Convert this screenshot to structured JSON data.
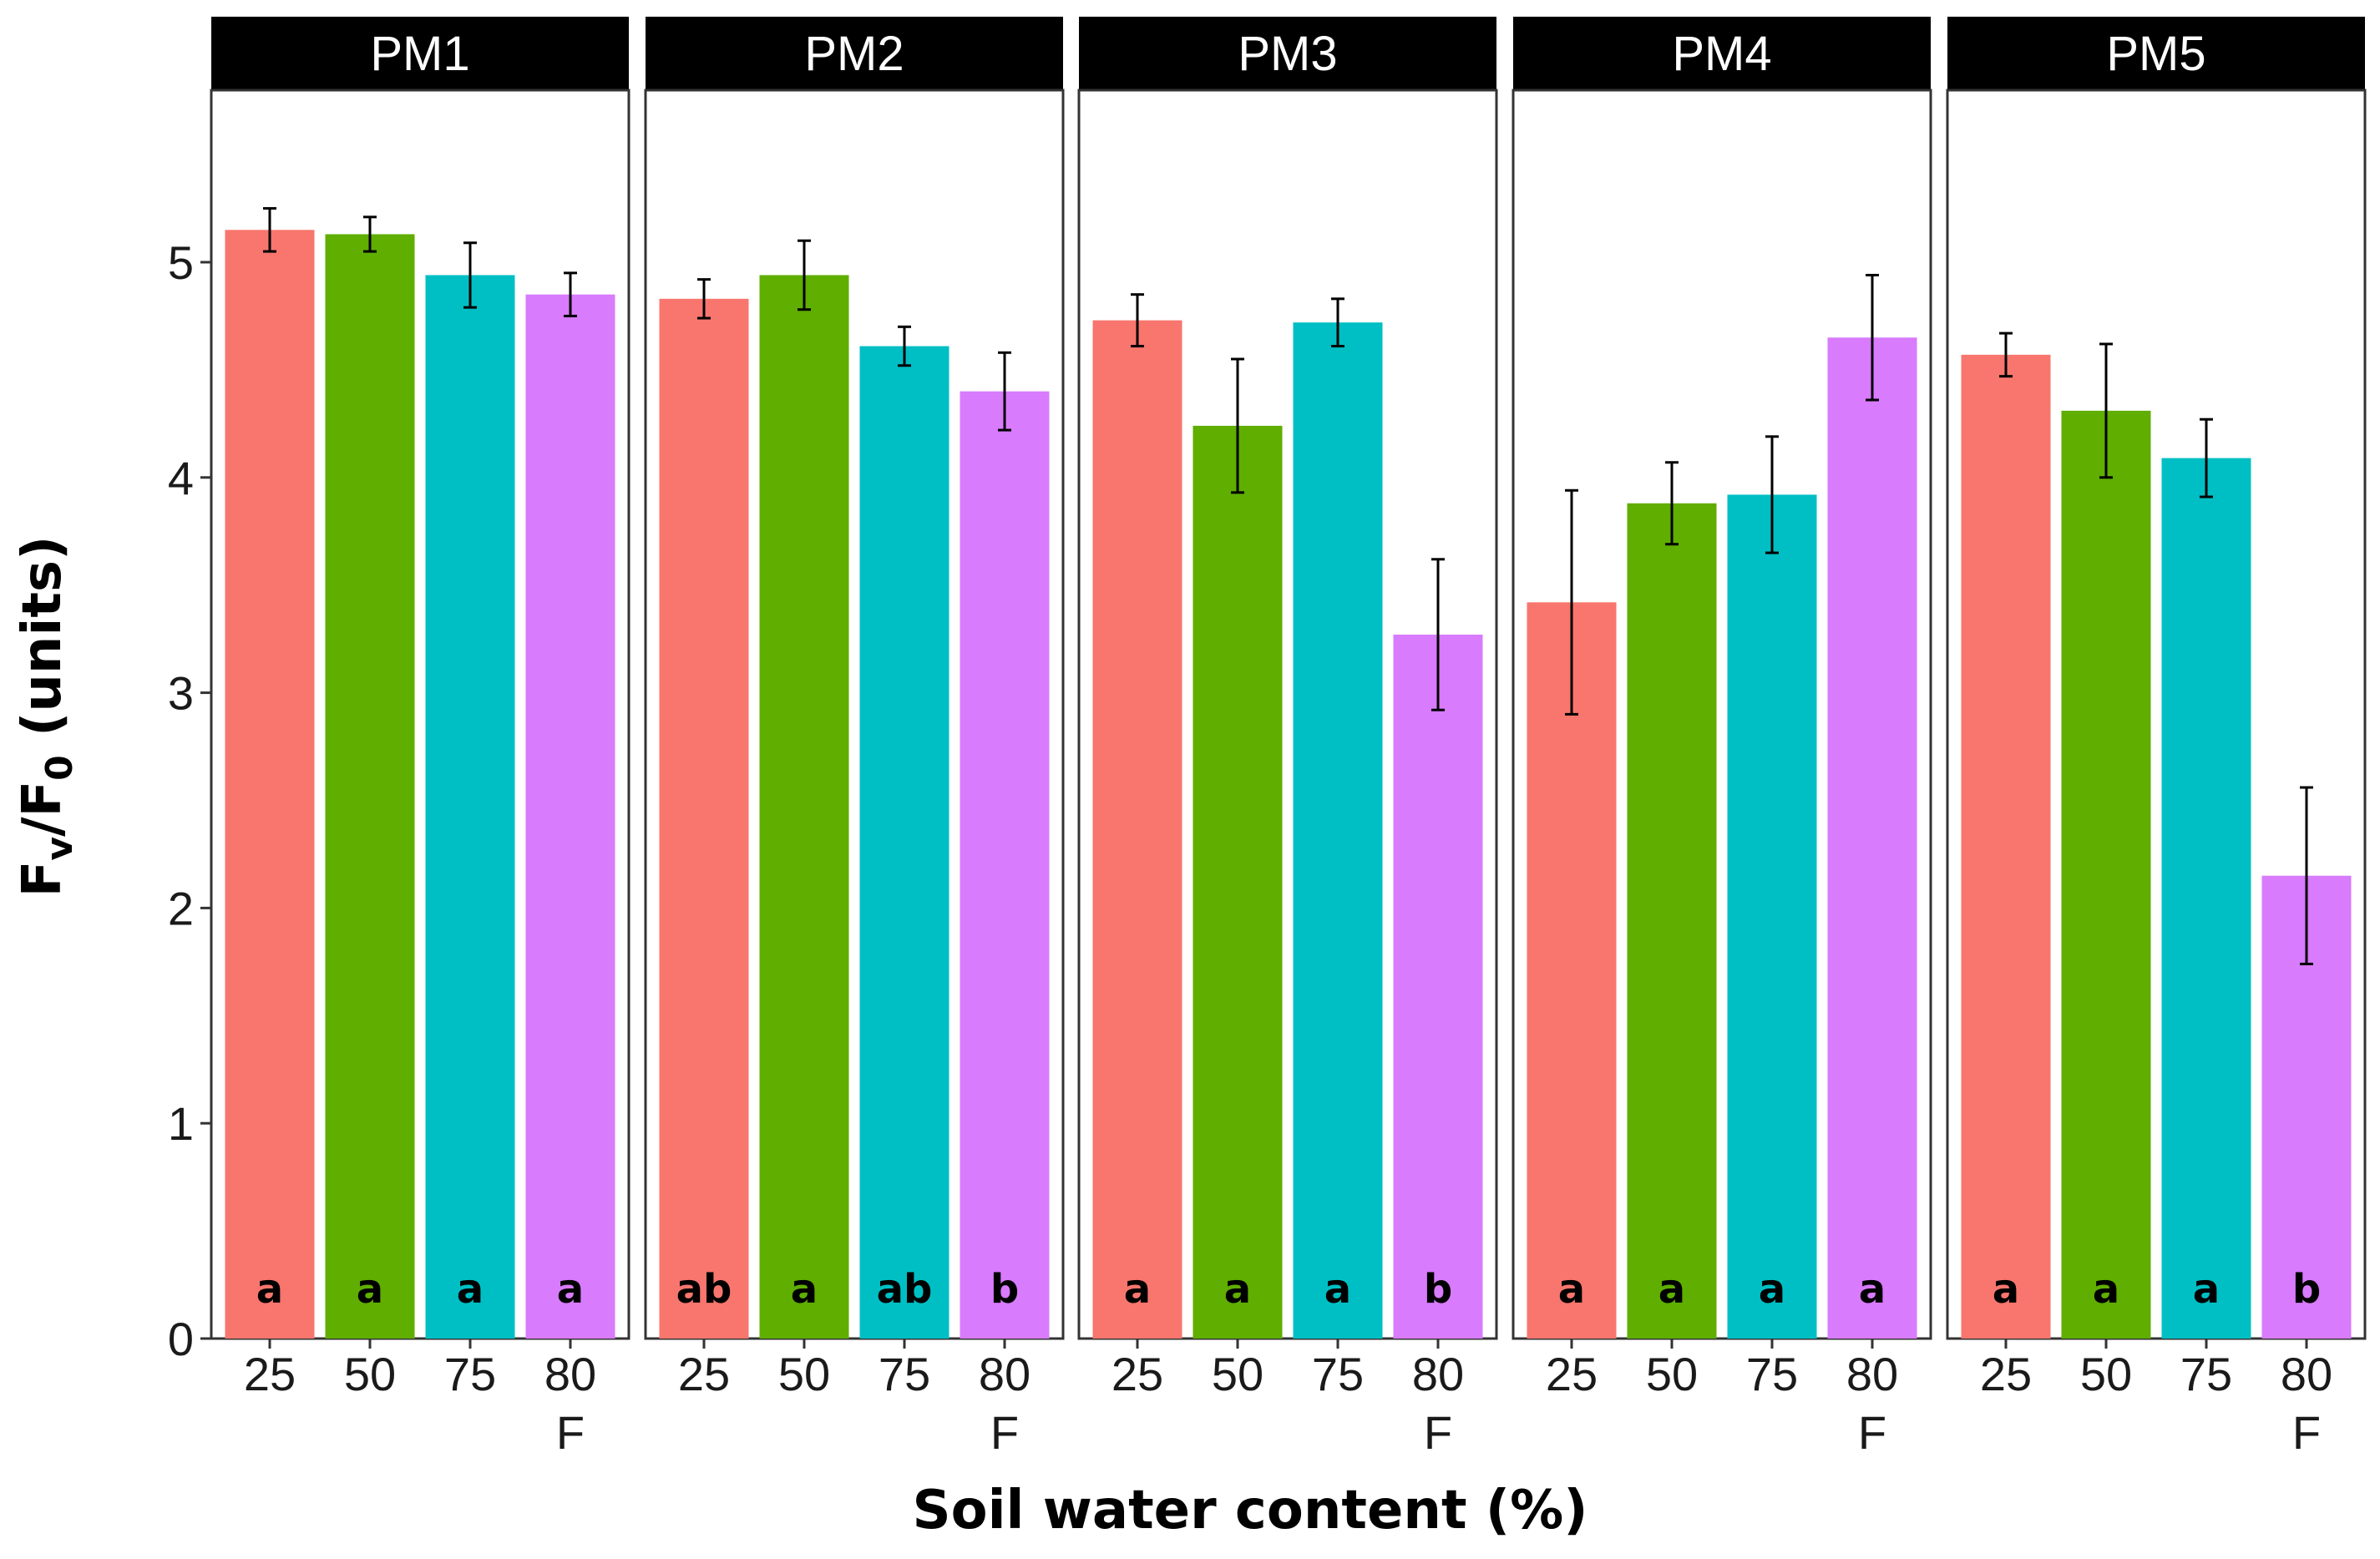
{
  "chart_data": {
    "type": "bar",
    "xlabel": "Soil water content (%)",
    "ylabel": {
      "main": "F",
      "sub_v": "v",
      "sep": "/F",
      "sub_0": "0",
      "rest": " (units)"
    },
    "ylim": [
      0,
      5.8
    ],
    "yticks": [
      0,
      1,
      2,
      3,
      4,
      5
    ],
    "grid": false,
    "legend": "none",
    "categories": [
      "25",
      "50",
      "75",
      "80"
    ],
    "category_sublabels": [
      "",
      "",
      "",
      "F"
    ],
    "colors": [
      "#F8766D",
      "#5FAE00",
      "#00BFC4",
      "#D87BFD"
    ],
    "panels": [
      {
        "name": "PM1",
        "values": [
          5.15,
          5.13,
          4.94,
          4.85
        ],
        "errors": [
          0.1,
          0.08,
          0.15,
          0.1
        ],
        "letters": [
          "a",
          "a",
          "a",
          "a"
        ]
      },
      {
        "name": "PM2",
        "values": [
          4.83,
          4.94,
          4.61,
          4.4
        ],
        "errors": [
          0.09,
          0.16,
          0.09,
          0.18
        ],
        "letters": [
          "ab",
          "a",
          "ab",
          "b"
        ]
      },
      {
        "name": "PM3",
        "values": [
          4.73,
          4.24,
          4.72,
          3.27
        ],
        "errors": [
          0.12,
          0.31,
          0.11,
          0.35
        ],
        "letters": [
          "a",
          "a",
          "a",
          "b"
        ]
      },
      {
        "name": "PM4",
        "values": [
          3.42,
          3.88,
          3.92,
          4.65
        ],
        "errors": [
          0.52,
          0.19,
          0.27,
          0.29
        ],
        "letters": [
          "a",
          "a",
          "a",
          "a"
        ]
      },
      {
        "name": "PM5",
        "values": [
          4.57,
          4.31,
          4.09,
          2.15
        ],
        "errors": [
          0.1,
          0.31,
          0.18,
          0.41
        ],
        "letters": [
          "a",
          "a",
          "a",
          "b"
        ]
      }
    ]
  }
}
